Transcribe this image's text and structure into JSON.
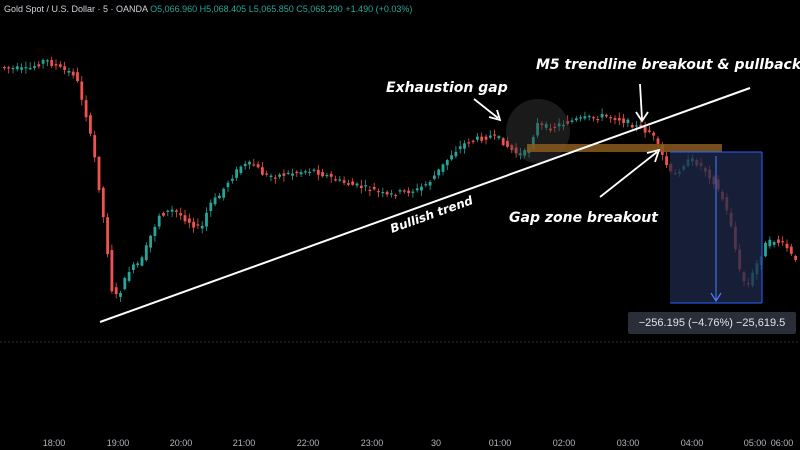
{
  "header": {
    "symbol": "Gold Spot / U.S. Dollar · 5 · OANDA",
    "open": "O5,066.960",
    "high": "H5,068.405",
    "low": "L5,065.850",
    "close": "C5,068.290",
    "change": "+1.490 (+0.03%)"
  },
  "annotations": {
    "exhaustion_gap": "Exhaustion gap",
    "trendline_breakout": "M5 trendline breakout & pullback",
    "bullish_trend": "Bullish trend",
    "gap_zone_breakout": "Gap zone breakout"
  },
  "measurement": {
    "label": "−256.195 (−4.76%) −25,619.5"
  },
  "time_axis": {
    "labels": [
      "18:00",
      "19:00",
      "20:00",
      "21:00",
      "22:00",
      "23:00",
      "30",
      "01:00",
      "02:00",
      "03:00",
      "04:00",
      "05:00",
      "06:00"
    ]
  },
  "colors": {
    "background": "#000000",
    "up_candle": "#26a69a",
    "down_candle": "#ef5350",
    "trendline": "#ffffff",
    "gap_zone": "#8a5a1e",
    "measure_box": "#1e2a4a",
    "measure_line": "#2962ff"
  }
}
